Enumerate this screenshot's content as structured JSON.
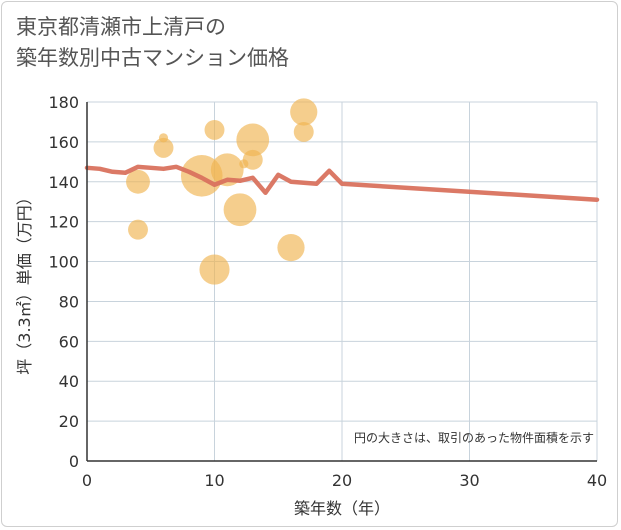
{
  "title_line1": "東京都清瀬市上清戸の",
  "title_line2": "築年数別中古マンション価格",
  "chart_data": {
    "type": "scatter",
    "xlabel": "築年数（年）",
    "ylabel": "坪（3.3㎡）単価（万円）",
    "xlim": [
      0,
      40
    ],
    "ylim": [
      0,
      180
    ],
    "x_ticks": [
      0,
      10,
      20,
      30,
      40
    ],
    "y_ticks": [
      0,
      20,
      40,
      60,
      80,
      100,
      120,
      140,
      160,
      180
    ],
    "note": "円の大きさは、取引のあった物件面積を示す",
    "colors": {
      "bubble": "#f0b450",
      "trend": "#d9725e",
      "grid": "#c8d3dc",
      "axis": "#333333"
    },
    "bubbles": [
      {
        "x": 4,
        "y": 140,
        "size": 3
      },
      {
        "x": 4,
        "y": 116,
        "size": 2
      },
      {
        "x": 6,
        "y": 157,
        "size": 2
      },
      {
        "x": 6,
        "y": 162,
        "size": 0.3
      },
      {
        "x": 9,
        "y": 143,
        "size": 10
      },
      {
        "x": 10,
        "y": 166,
        "size": 2
      },
      {
        "x": 10,
        "y": 96,
        "size": 5
      },
      {
        "x": 11,
        "y": 146,
        "size": 6
      },
      {
        "x": 12,
        "y": 126,
        "size": 6
      },
      {
        "x": 12.3,
        "y": 149,
        "size": 0.3
      },
      {
        "x": 13,
        "y": 161,
        "size": 6
      },
      {
        "x": 13,
        "y": 151,
        "size": 2
      },
      {
        "x": 16,
        "y": 107,
        "size": 4
      },
      {
        "x": 17,
        "y": 175,
        "size": 4
      },
      {
        "x": 17,
        "y": 165,
        "size": 2
      }
    ],
    "trend": {
      "x": [
        0,
        1,
        2,
        3,
        4,
        5,
        6,
        7,
        8,
        9,
        10,
        11,
        12,
        13,
        14,
        15,
        16,
        17,
        18,
        19,
        20,
        40
      ],
      "y": [
        147,
        146.5,
        145,
        144.5,
        147.5,
        147,
        146.5,
        147.5,
        145,
        142,
        138.5,
        141,
        140.5,
        142,
        134.5,
        143.5,
        140,
        139.5,
        139,
        145.5,
        139,
        131
      ]
    }
  }
}
